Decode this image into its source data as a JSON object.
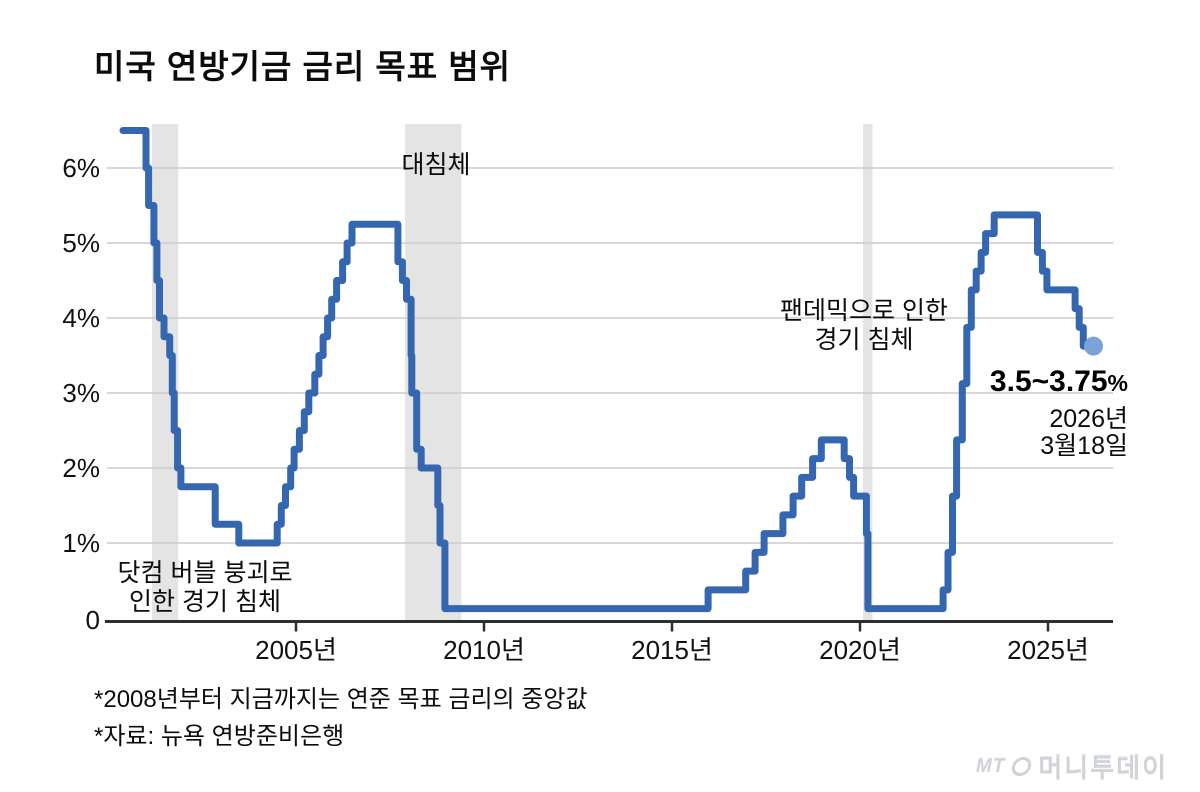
{
  "title": "미국 연방기금 금리 목표 범위",
  "chart_data": {
    "type": "line",
    "title": "미국 연방기금 금리 목표 범위",
    "line_style": "step",
    "grid": true,
    "colors": {
      "line": "#3566b0",
      "end_dot": "#7ba3d9",
      "recession_band": "#e4e4e4",
      "gridline": "#cbcbcb",
      "axis": "#2e2e2e"
    },
    "x_axis": {
      "tick_years": [
        2005,
        2010,
        2015,
        2020,
        2025
      ],
      "tick_labels": [
        "2005년",
        "2010년",
        "2015년",
        "2020년",
        "2025년"
      ],
      "range": [
        2000.1,
        2026.8
      ]
    },
    "y_axis": {
      "unit": "%",
      "tick_values": [
        6,
        5,
        4,
        3,
        2,
        1,
        0
      ],
      "tick_labels": [
        "6%",
        "5%",
        "4%",
        "3%",
        "2%",
        "1%",
        "0"
      ],
      "range": [
        0,
        6.6
      ]
    },
    "series": [
      {
        "name": "미국 연방기금 금리 목표 범위(중앙값)",
        "step_points": [
          [
            2000.4,
            6.5
          ],
          [
            2001.01,
            6.0
          ],
          [
            2001.08,
            5.5
          ],
          [
            2001.22,
            5.0
          ],
          [
            2001.3,
            4.5
          ],
          [
            2001.37,
            4.0
          ],
          [
            2001.49,
            3.75
          ],
          [
            2001.64,
            3.5
          ],
          [
            2001.71,
            3.0
          ],
          [
            2001.76,
            2.5
          ],
          [
            2001.85,
            2.0
          ],
          [
            2001.94,
            1.75
          ],
          [
            2002.85,
            1.25
          ],
          [
            2003.48,
            1.0
          ],
          [
            2004.5,
            1.25
          ],
          [
            2004.61,
            1.5
          ],
          [
            2004.72,
            1.75
          ],
          [
            2004.86,
            2.0
          ],
          [
            2004.95,
            2.25
          ],
          [
            2005.09,
            2.5
          ],
          [
            2005.22,
            2.75
          ],
          [
            2005.34,
            3.0
          ],
          [
            2005.5,
            3.25
          ],
          [
            2005.61,
            3.5
          ],
          [
            2005.72,
            3.75
          ],
          [
            2005.84,
            4.0
          ],
          [
            2005.95,
            4.25
          ],
          [
            2006.08,
            4.5
          ],
          [
            2006.24,
            4.75
          ],
          [
            2006.36,
            5.0
          ],
          [
            2006.49,
            5.25
          ],
          [
            2007.71,
            4.75
          ],
          [
            2007.83,
            4.5
          ],
          [
            2007.94,
            4.25
          ],
          [
            2008.06,
            3.5
          ],
          [
            2008.08,
            3.0
          ],
          [
            2008.21,
            2.25
          ],
          [
            2008.33,
            2.0
          ],
          [
            2008.77,
            1.5
          ],
          [
            2008.83,
            1.0
          ],
          [
            2008.96,
            0.125
          ],
          [
            2015.96,
            0.375
          ],
          [
            2016.96,
            0.625
          ],
          [
            2017.21,
            0.875
          ],
          [
            2017.45,
            1.125
          ],
          [
            2017.95,
            1.375
          ],
          [
            2018.22,
            1.625
          ],
          [
            2018.45,
            1.875
          ],
          [
            2018.74,
            2.125
          ],
          [
            2018.97,
            2.375
          ],
          [
            2019.58,
            2.125
          ],
          [
            2019.72,
            1.875
          ],
          [
            2019.83,
            1.625
          ],
          [
            2020.17,
            1.125
          ],
          [
            2020.21,
            0.125
          ],
          [
            2022.21,
            0.375
          ],
          [
            2022.34,
            0.875
          ],
          [
            2022.46,
            1.625
          ],
          [
            2022.57,
            2.375
          ],
          [
            2022.72,
            3.125
          ],
          [
            2022.84,
            3.875
          ],
          [
            2022.96,
            4.375
          ],
          [
            2023.09,
            4.625
          ],
          [
            2023.22,
            4.875
          ],
          [
            2023.34,
            5.125
          ],
          [
            2023.57,
            5.375
          ],
          [
            2024.72,
            4.875
          ],
          [
            2024.85,
            4.625
          ],
          [
            2024.97,
            4.375
          ],
          [
            2025.72,
            4.125
          ],
          [
            2025.83,
            3.875
          ],
          [
            2025.94,
            3.625
          ],
          [
            2026.21,
            3.625
          ]
        ]
      }
    ],
    "recession_bands": [
      {
        "name": "닷컴 버블 붕괴 경기 침체",
        "from": 2001.17,
        "to": 2001.87
      },
      {
        "name": "대침체",
        "from": 2007.9,
        "to": 2009.4
      },
      {
        "name": "팬데믹 경기 침체",
        "from": 2020.08,
        "to": 2020.33
      }
    ],
    "end_marker": {
      "year": 2026.21,
      "value": 3.625
    }
  },
  "annotations": {
    "dotcom": {
      "line1": "닷컴 버블 붕괴로",
      "line2": "인한 경기 침체"
    },
    "great_recession": "대침체",
    "pandemic": {
      "line1": "팬데믹으로 인한",
      "line2": "경기 침체"
    },
    "latest": {
      "rate": "3.5~3.75",
      "unit": "%",
      "date_line1": "2026년",
      "date_line2": "3월18일"
    }
  },
  "footnotes": [
    "*2008년부터 지금까지는 연준 목표 금리의 중앙값",
    "*자료: 뉴욕 연방준비은행"
  ],
  "logo": {
    "mt": "MT",
    "name": "머니투데이"
  }
}
